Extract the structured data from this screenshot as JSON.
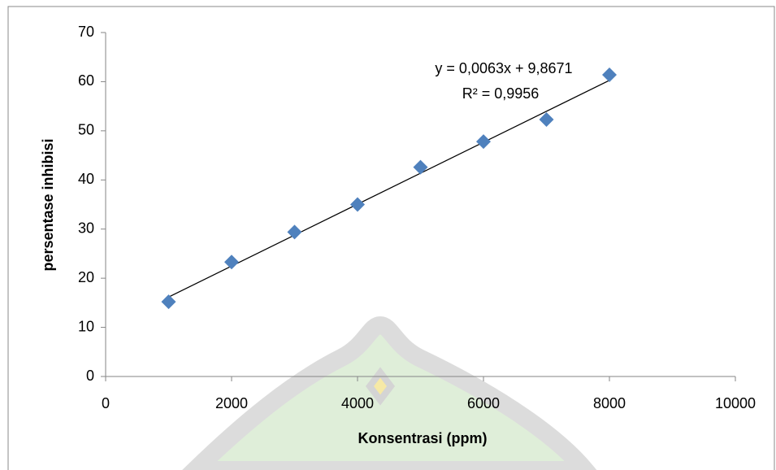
{
  "chart_data": {
    "type": "scatter",
    "x_label": "Konsentrasi (ppm)",
    "y_label": "persentase inhibisi",
    "series": [
      {
        "color": "#4f81bd",
        "x": [
          1000,
          2000,
          3000,
          4000,
          5000,
          6000,
          7000,
          8000
        ],
        "values": [
          15.2,
          23.3,
          29.4,
          35.0,
          42.6,
          47.8,
          52.3,
          61.4
        ]
      }
    ],
    "trendline": {
      "color": "#000000",
      "x": [
        1000,
        8000
      ],
      "values": [
        16.17,
        60.27
      ]
    },
    "annotations": [
      "y = 0,0063x + 9,8671",
      "R² = 0,9956"
    ],
    "xlim": [
      0,
      10000
    ],
    "xticks": [
      0,
      2000,
      4000,
      6000,
      8000,
      10000
    ],
    "ylim": [
      0,
      70
    ],
    "yticks": [
      0,
      10,
      20,
      30,
      40,
      50,
      60,
      70
    ],
    "grid": false
  }
}
